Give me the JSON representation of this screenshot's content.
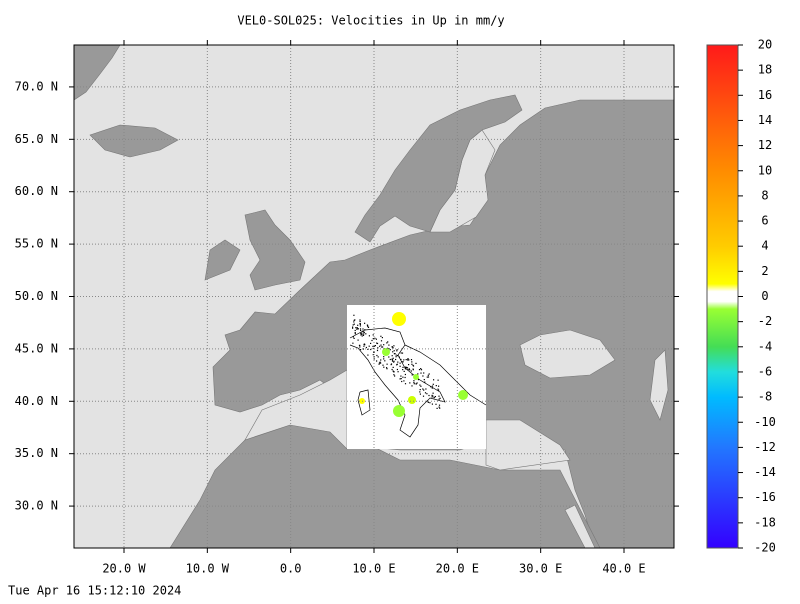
{
  "title": "VEL0-SOL025: Velocities in Up in mm/y",
  "map": {
    "xlim": [
      -26,
      46
    ],
    "ylim": [
      26,
      74
    ],
    "grid": true,
    "xticks": [
      {
        "value": -20,
        "label": "20.0 W"
      },
      {
        "value": -10,
        "label": "10.0 W"
      },
      {
        "value": 0,
        "label": "0.0"
      },
      {
        "value": 10,
        "label": "10.0 E"
      },
      {
        "value": 20,
        "label": "20.0 E"
      },
      {
        "value": 30,
        "label": "30.0 E"
      },
      {
        "value": 40,
        "label": "40.0 E"
      }
    ],
    "yticks": [
      {
        "value": 30,
        "label": "30.0 N"
      },
      {
        "value": 35,
        "label": "35.0 N"
      },
      {
        "value": 40,
        "label": "40.0 N"
      },
      {
        "value": 45,
        "label": "45.0 N"
      },
      {
        "value": 50,
        "label": "50.0 N"
      },
      {
        "value": 55,
        "label": "55.0 N"
      },
      {
        "value": 60,
        "label": "60.0 N"
      },
      {
        "value": 65,
        "label": "65.0 N"
      },
      {
        "value": 70,
        "label": "70.0 N"
      }
    ]
  },
  "colorbar": {
    "lim": [
      -20,
      20
    ],
    "ticks": [
      20,
      18,
      16,
      14,
      12,
      10,
      8,
      6,
      4,
      2,
      0,
      -2,
      -4,
      -6,
      -8,
      -10,
      -12,
      -14,
      -16,
      -18,
      -20
    ]
  },
  "timestamp": "Tue Apr 16 15:12:10 2024"
}
